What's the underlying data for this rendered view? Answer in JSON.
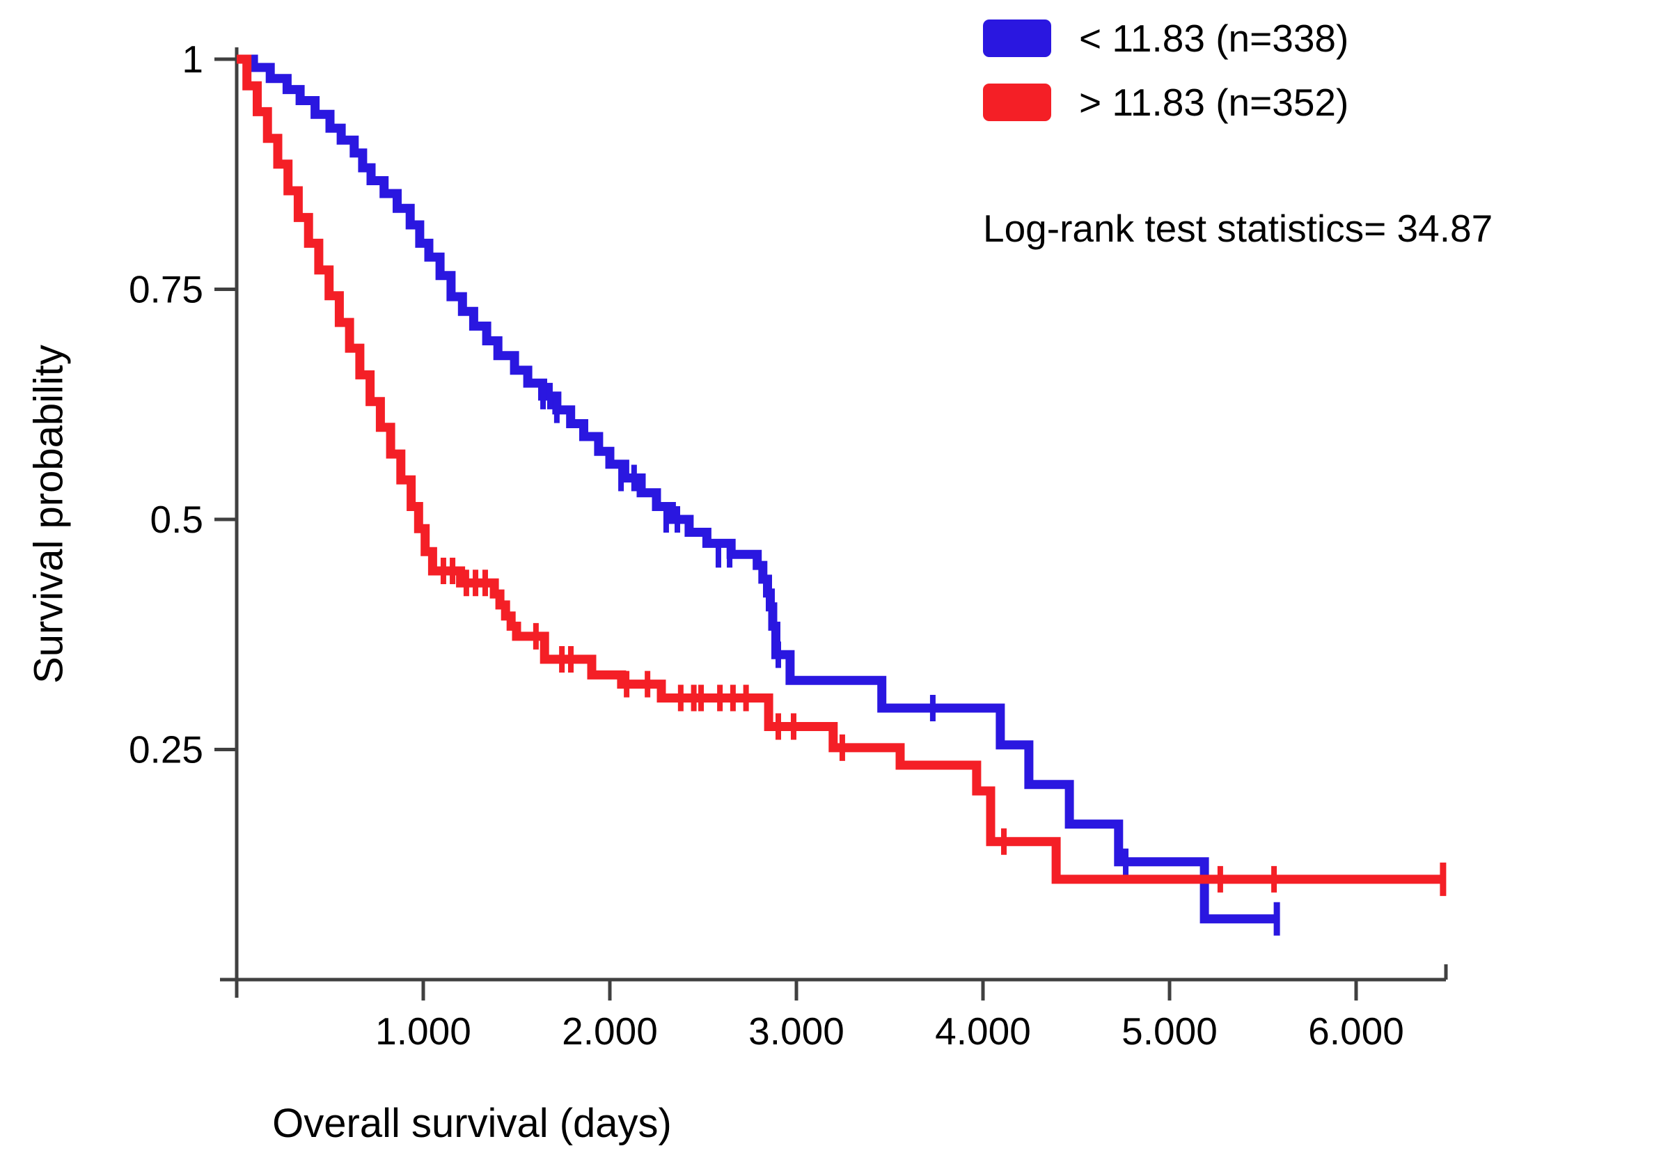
{
  "figure": {
    "background": "#ffffff",
    "axis_color": "#404040",
    "text_color": "#000000"
  },
  "legend": {
    "items": [
      {
        "id": "blue",
        "label": "< 11.83 (n=338)",
        "color": "#2a17e0"
      },
      {
        "id": "red",
        "label": "> 11.83 (n=352)",
        "color": "#f41f26"
      }
    ]
  },
  "stats_text": "Log-rank test statistics= 34.87",
  "chart_data": {
    "type": "line",
    "subtype": "kaplan-meier-step",
    "title": "",
    "xlabel": "Overall survival (days)",
    "ylabel": "Survival probability",
    "xlim": [
      0,
      6480
    ],
    "ylim": [
      0,
      1
    ],
    "grid": false,
    "legend_position": "top-right",
    "x_ticks": [
      {
        "value": 1000,
        "label": "1.000"
      },
      {
        "value": 2000,
        "label": "2.000"
      },
      {
        "value": 3000,
        "label": "3.000"
      },
      {
        "value": 4000,
        "label": "4.000"
      },
      {
        "value": 5000,
        "label": "5.000"
      },
      {
        "value": 6000,
        "label": "6.000"
      }
    ],
    "y_ticks": [
      {
        "value": 1,
        "label": "1"
      },
      {
        "value": 0.75,
        "label": "0.75"
      },
      {
        "value": 0.5,
        "label": "0.5"
      },
      {
        "value": 0.25,
        "label": "0.25"
      }
    ],
    "series": [
      {
        "id": "blue",
        "name": "< 11.83 (n=338)",
        "color": "#2a17e0",
        "steps": [
          [
            0,
            1.0
          ],
          [
            90,
            0.991
          ],
          [
            180,
            0.979
          ],
          [
            270,
            0.967
          ],
          [
            340,
            0.955
          ],
          [
            420,
            0.94
          ],
          [
            500,
            0.925
          ],
          [
            560,
            0.912
          ],
          [
            630,
            0.898
          ],
          [
            675,
            0.882
          ],
          [
            720,
            0.868
          ],
          [
            790,
            0.854
          ],
          [
            860,
            0.838
          ],
          [
            930,
            0.82
          ],
          [
            981,
            0.8
          ],
          [
            1030,
            0.785
          ],
          [
            1090,
            0.765
          ],
          [
            1149,
            0.742
          ],
          [
            1210,
            0.726
          ],
          [
            1270,
            0.71
          ],
          [
            1340,
            0.694
          ],
          [
            1400,
            0.678
          ],
          [
            1489,
            0.662
          ],
          [
            1560,
            0.648
          ],
          [
            1640,
            0.634
          ],
          [
            1716,
            0.619
          ],
          [
            1790,
            0.604
          ],
          [
            1860,
            0.59
          ],
          [
            1940,
            0.574
          ],
          [
            2000,
            0.56
          ],
          [
            2080,
            0.545
          ],
          [
            2168,
            0.529
          ],
          [
            2250,
            0.514
          ],
          [
            2330,
            0.5
          ],
          [
            2425,
            0.486
          ],
          [
            2520,
            0.474
          ],
          [
            2650,
            0.462
          ],
          [
            2790,
            0.45
          ],
          [
            2820,
            0.435
          ],
          [
            2845,
            0.42
          ],
          [
            2860,
            0.405
          ],
          [
            2873,
            0.384
          ],
          [
            2890,
            0.353
          ],
          [
            2966,
            0.325
          ],
          [
            3458,
            0.295
          ],
          [
            4093,
            0.255
          ],
          [
            4246,
            0.212
          ],
          [
            4463,
            0.169
          ],
          [
            4727,
            0.128
          ],
          [
            5187,
            0.066
          ]
        ],
        "end_day": 5575,
        "censors": [
          [
            1642,
            0.634
          ],
          [
            1679,
            0.634
          ],
          [
            1716,
            0.619
          ],
          [
            2060,
            0.545
          ],
          [
            2130,
            0.545
          ],
          [
            2302,
            0.5
          ],
          [
            2362,
            0.5
          ],
          [
            2582,
            0.462
          ],
          [
            2642,
            0.462
          ],
          [
            2903,
            0.353
          ],
          [
            3731,
            0.295
          ],
          [
            4765,
            0.128
          ]
        ],
        "terminal": [
          5575,
          0.066
        ]
      },
      {
        "id": "red",
        "name": "> 11.83 (n=352)",
        "color": "#f41f26",
        "steps": [
          [
            0,
            1.0
          ],
          [
            55,
            0.971
          ],
          [
            110,
            0.943
          ],
          [
            165,
            0.914
          ],
          [
            220,
            0.886
          ],
          [
            275,
            0.857
          ],
          [
            330,
            0.828
          ],
          [
            385,
            0.8
          ],
          [
            440,
            0.771
          ],
          [
            495,
            0.743
          ],
          [
            550,
            0.714
          ],
          [
            605,
            0.686
          ],
          [
            660,
            0.657
          ],
          [
            715,
            0.628
          ],
          [
            770,
            0.6
          ],
          [
            825,
            0.571
          ],
          [
            880,
            0.543
          ],
          [
            935,
            0.514
          ],
          [
            975,
            0.49
          ],
          [
            1010,
            0.465
          ],
          [
            1050,
            0.444
          ],
          [
            1200,
            0.431
          ],
          [
            1381,
            0.419
          ],
          [
            1411,
            0.407
          ],
          [
            1441,
            0.395
          ],
          [
            1471,
            0.384
          ],
          [
            1500,
            0.373
          ],
          [
            1650,
            0.348
          ],
          [
            1903,
            0.331
          ],
          [
            2063,
            0.321
          ],
          [
            2276,
            0.306
          ],
          [
            2851,
            0.275
          ],
          [
            3197,
            0.252
          ],
          [
            3556,
            0.233
          ],
          [
            3966,
            0.205
          ],
          [
            4041,
            0.15
          ],
          [
            4392,
            0.109
          ]
        ],
        "end_day": 6466,
        "censors": [
          [
            1108,
            0.444
          ],
          [
            1157,
            0.444
          ],
          [
            1231,
            0.431
          ],
          [
            1280,
            0.431
          ],
          [
            1332,
            0.431
          ],
          [
            1604,
            0.373
          ],
          [
            1743,
            0.348
          ],
          [
            1791,
            0.348
          ],
          [
            2090,
            0.321
          ],
          [
            2202,
            0.321
          ],
          [
            2380,
            0.306
          ],
          [
            2450,
            0.306
          ],
          [
            2489,
            0.306
          ],
          [
            2590,
            0.306
          ],
          [
            2660,
            0.306
          ],
          [
            2730,
            0.306
          ],
          [
            2903,
            0.275
          ],
          [
            2985,
            0.275
          ],
          [
            3246,
            0.252
          ],
          [
            4112,
            0.15
          ],
          [
            5272,
            0.109
          ],
          [
            5560,
            0.109
          ]
        ],
        "terminal": [
          6466,
          0.109
        ]
      }
    ]
  }
}
